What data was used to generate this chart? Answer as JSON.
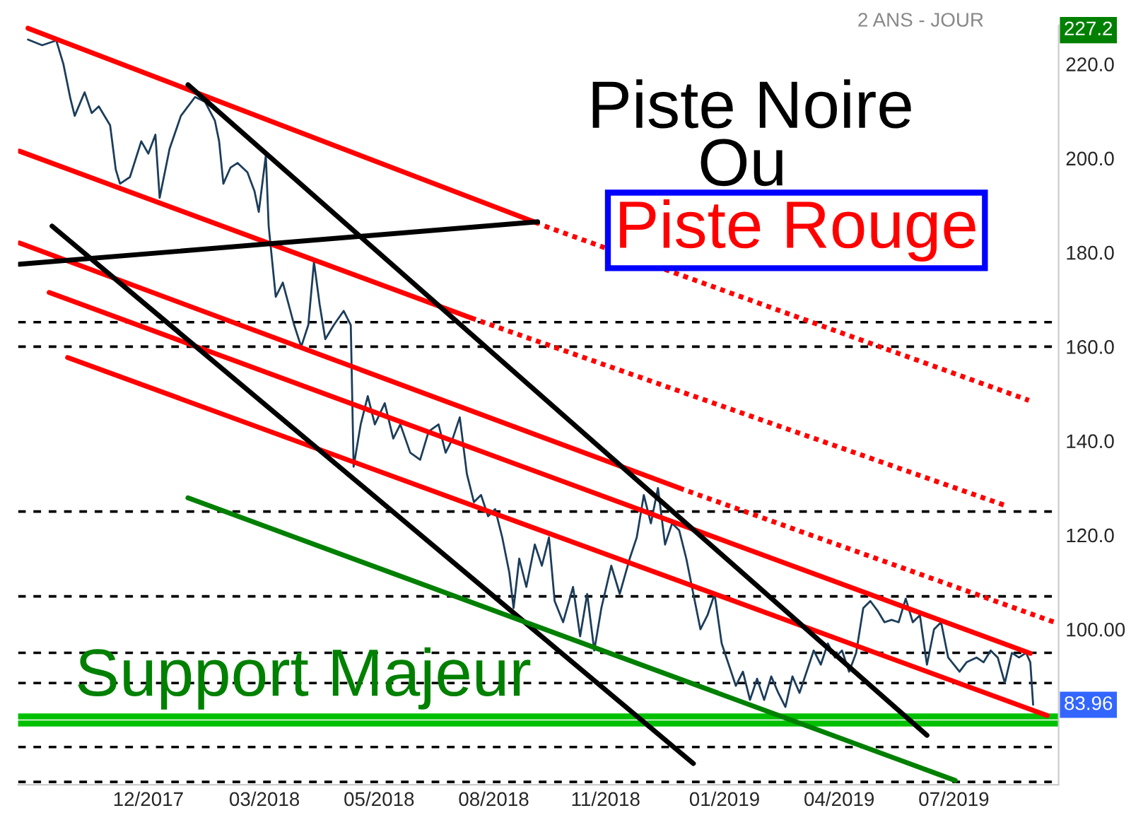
{
  "chart_data": {
    "type": "line",
    "subtitle": "2 ANS - JOUR",
    "xlim": [
      "2017-09-14",
      "2019-09-19"
    ],
    "ylim": [
      67,
      228.2
    ],
    "xticks": [
      {
        "value": "2017-12-15",
        "label": "12/2017"
      },
      {
        "value": "2018-03-07",
        "label": "03/2018"
      },
      {
        "value": "2018-05-27",
        "label": "05/2018"
      },
      {
        "value": "2018-08-16",
        "label": "08/2018"
      },
      {
        "value": "2018-11-03",
        "label": "11/2018"
      },
      {
        "value": "2019-01-26",
        "label": "01/2019"
      },
      {
        "value": "2019-04-17",
        "label": "04/2019"
      },
      {
        "value": "2019-07-07",
        "label": "07/2019"
      }
    ],
    "yticks": [
      {
        "value": 80,
        "label": null
      },
      {
        "value": 100,
        "label": "100.00"
      },
      {
        "value": 120,
        "label": "120.0"
      },
      {
        "value": 140,
        "label": "140.0"
      },
      {
        "value": 160,
        "label": "160.0"
      },
      {
        "value": 180,
        "label": "180.0"
      },
      {
        "value": 200,
        "label": "200.0"
      },
      {
        "value": 220,
        "label": "220.0"
      }
    ],
    "grid": false,
    "legend": false,
    "series": [
      {
        "color": "#1c3d5a",
        "line_style": "solid",
        "x": [
          "2017-09-21",
          "2017-10-01",
          "2017-10-11",
          "2017-10-16",
          "2017-10-21",
          "2017-10-24",
          "2017-10-31",
          "2017-11-05",
          "2017-11-10",
          "2017-11-18",
          "2017-11-22",
          "2017-11-25",
          "2017-12-02",
          "2017-12-10",
          "2017-12-15",
          "2017-12-20",
          "2017-12-23",
          "2017-12-30",
          "2018-01-07",
          "2018-01-17",
          "2018-01-24",
          "2018-01-31",
          "2018-02-03",
          "2018-02-06",
          "2018-02-11",
          "2018-02-16",
          "2018-02-23",
          "2018-02-28",
          "2018-03-03",
          "2018-03-08",
          "2018-03-10",
          "2018-03-15",
          "2018-03-20",
          "2018-03-28",
          "2018-04-02",
          "2018-04-07",
          "2018-04-11",
          "2018-04-15",
          "2018-04-19",
          "2018-04-25",
          "2018-05-02",
          "2018-05-07",
          "2018-05-09",
          "2018-05-14",
          "2018-05-19",
          "2018-05-24",
          "2018-05-31",
          "2018-06-06",
          "2018-06-11",
          "2018-06-18",
          "2018-06-25",
          "2018-07-01",
          "2018-07-08",
          "2018-07-13",
          "2018-07-18",
          "2018-07-23",
          "2018-07-28",
          "2018-08-02",
          "2018-08-07",
          "2018-08-12",
          "2018-08-17",
          "2018-08-22",
          "2018-08-27",
          "2018-08-30",
          "2018-09-03",
          "2018-09-08",
          "2018-09-14",
          "2018-09-19",
          "2018-09-24",
          "2018-09-28",
          "2018-10-04",
          "2018-10-11",
          "2018-10-16",
          "2018-10-21",
          "2018-10-26",
          "2018-10-31",
          "2018-11-07",
          "2018-11-13",
          "2018-11-20",
          "2018-11-25",
          "2018-11-30",
          "2018-12-05",
          "2018-12-10",
          "2018-12-15",
          "2018-12-20",
          "2018-12-25",
          "2018-12-30",
          "2019-01-04",
          "2019-01-09",
          "2019-01-14",
          "2019-01-19",
          "2019-01-24",
          "2019-01-29",
          "2019-02-03",
          "2019-02-08",
          "2019-02-13",
          "2019-02-18",
          "2019-02-23",
          "2019-02-28",
          "2019-03-05",
          "2019-03-10",
          "2019-03-15",
          "2019-03-20",
          "2019-03-25",
          "2019-03-30",
          "2019-04-04",
          "2019-04-09",
          "2019-04-14",
          "2019-04-19",
          "2019-04-24",
          "2019-04-29",
          "2019-05-04",
          "2019-05-09",
          "2019-05-14",
          "2019-05-19",
          "2019-05-24",
          "2019-05-29",
          "2019-06-03",
          "2019-06-08",
          "2019-06-13",
          "2019-06-18",
          "2019-06-23",
          "2019-06-28",
          "2019-07-03",
          "2019-07-11",
          "2019-07-16",
          "2019-07-23",
          "2019-07-28",
          "2019-08-02",
          "2019-08-07",
          "2019-08-12",
          "2019-08-17",
          "2019-08-22",
          "2019-08-27",
          "2019-08-30",
          "2019-09-01"
        ],
        "values": [
          225.2,
          224,
          225,
          220,
          212.6,
          209,
          214,
          209.6,
          211,
          207,
          197.6,
          194.6,
          196,
          203.6,
          201,
          205,
          191.6,
          202,
          209,
          213,
          212,
          208,
          203.6,
          194.6,
          198,
          199,
          197,
          193,
          188.6,
          200.6,
          185.6,
          170.6,
          173.6,
          164.6,
          160,
          164.6,
          178,
          169,
          161.6,
          164.6,
          167.6,
          164.6,
          134.5,
          143.5,
          149.5,
          143.5,
          148,
          140.5,
          143.5,
          137.5,
          136,
          142,
          143.5,
          137.5,
          140.5,
          145,
          133,
          127,
          128.5,
          124,
          125.5,
          119.5,
          112,
          104.5,
          115,
          109,
          118,
          113.5,
          119.5,
          106,
          101.5,
          109,
          98.5,
          107.5,
          95.5,
          104.5,
          113.5,
          107.5,
          115,
          119.5,
          128.5,
          122.5,
          130,
          118,
          122.5,
          121,
          115,
          107.5,
          100,
          103,
          107.5,
          97,
          92.5,
          88,
          91,
          85,
          89.5,
          85,
          90,
          86.5,
          83.5,
          90,
          86.5,
          91,
          95.5,
          92.5,
          97,
          94,
          95.5,
          91,
          95,
          104.5,
          106,
          104,
          101.5,
          102,
          101.5,
          106.5,
          101.5,
          103,
          92.5,
          100,
          101.5,
          94,
          91,
          93,
          94,
          93,
          95.5,
          94,
          88.6,
          95,
          94,
          95,
          93,
          84
        ]
      },
      {
        "color": "#ff0000",
        "line_style": "solid",
        "x": [
          "2017-09-21",
          "2018-09-16"
        ],
        "values": [
          227.6,
          186.2
        ]
      },
      {
        "color": "#ff0000",
        "line_style": "dotted",
        "x": [
          "2018-09-21",
          "2019-08-29"
        ],
        "values": [
          185.6,
          148.6
        ]
      },
      {
        "color": "#ff0000",
        "line_style": "solid",
        "x": [
          "2017-09-15",
          "2018-07-31"
        ],
        "values": [
          201.5,
          166.1
        ]
      },
      {
        "color": "#ff0000",
        "line_style": "dotted",
        "x": [
          "2018-07-31",
          "2019-08-14"
        ],
        "values": [
          166.1,
          126.1
        ]
      },
      {
        "color": "#ff0000",
        "line_style": "solid",
        "x": [
          "2017-09-15",
          "2018-12-25"
        ],
        "values": [
          182.0,
          130.0
        ]
      },
      {
        "color": "#ff0000",
        "line_style": "dotted",
        "x": [
          "2018-12-25",
          "2019-09-16"
        ],
        "values": [
          130.0,
          101.5
        ]
      },
      {
        "color": "#ff0000",
        "line_style": "solid",
        "x": [
          "2017-10-06",
          "2019-08-30"
        ],
        "values": [
          171.5,
          94.9
        ]
      },
      {
        "color": "#ff0000",
        "line_style": "solid",
        "x": [
          "2017-10-19",
          "2019-09-11"
        ],
        "values": [
          157.7,
          81.7
        ]
      },
      {
        "color": "#000000",
        "line_style": "solid",
        "x": [
          "2017-09-15",
          "2018-09-16"
        ],
        "values": [
          177.5,
          186.5
        ]
      },
      {
        "color": "#000000",
        "line_style": "solid",
        "x": [
          "2018-01-12",
          "2019-06-18"
        ],
        "values": [
          215.6,
          77.5
        ]
      },
      {
        "color": "#000000",
        "line_style": "solid",
        "x": [
          "2017-10-08",
          "2019-01-04"
        ],
        "values": [
          185.6,
          71.5
        ]
      },
      {
        "color": "#008000",
        "line_style": "solid",
        "x": [
          "2018-01-12",
          "2019-07-08"
        ],
        "values": [
          127.9,
          67.9
        ]
      }
    ],
    "ref_lines": [
      {
        "axis": "y",
        "value": 165.2,
        "color": "#000000",
        "line_style": "dashed"
      },
      {
        "axis": "y",
        "value": 160,
        "color": "#000000",
        "line_style": "dashed"
      },
      {
        "axis": "y",
        "value": 125,
        "color": "#000000",
        "line_style": "dashed"
      },
      {
        "axis": "y",
        "value": 107,
        "color": "#000000",
        "line_style": "dashed"
      },
      {
        "axis": "y",
        "value": 95,
        "color": "#000000",
        "line_style": "dashed"
      },
      {
        "axis": "y",
        "value": 88.6,
        "color": "#000000",
        "line_style": "dashed"
      },
      {
        "axis": "y",
        "value": 75,
        "color": "#000000",
        "line_style": "dashed"
      },
      {
        "axis": "y",
        "value": 67.6,
        "color": "#000000",
        "line_style": "dashed"
      },
      {
        "axis": "y",
        "value": 81.5,
        "color": "#00c000",
        "line_style": "solid"
      },
      {
        "axis": "y",
        "value": 80,
        "color": "#00c000",
        "line_style": "solid"
      }
    ],
    "annotations": [
      {
        "text": "Piste Noire"
      },
      {
        "text": "Ou"
      },
      {
        "text": "Piste Rouge"
      },
      {
        "text": "Support Majeur"
      },
      {
        "text": "227.2",
        "y": 227.2
      },
      {
        "text": "83.96",
        "y": 83.96
      }
    ]
  }
}
